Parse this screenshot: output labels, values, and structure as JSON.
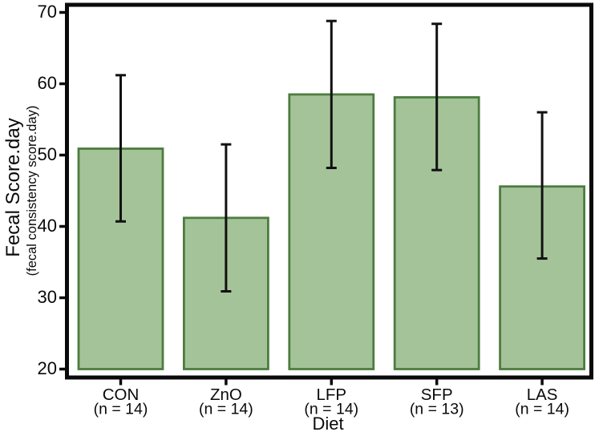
{
  "chart_data": {
    "type": "bar",
    "title": "",
    "xlabel": "Diet",
    "ylabel": "Fecal Score.day",
    "ylabel_sub": "(fecal consistency score.day)",
    "categories": [
      "CON",
      "ZnO",
      "LFP",
      "SFP",
      "LAS"
    ],
    "category_sublabels": [
      "(n = 14)",
      "(n = 14)",
      "(n = 14)",
      "(n = 13)",
      "(n = 14)"
    ],
    "values": [
      50.9,
      41.2,
      58.5,
      58.1,
      45.6
    ],
    "error_upper": [
      61.2,
      51.5,
      68.8,
      68.4,
      56.0
    ],
    "error_lower": [
      40.7,
      30.9,
      48.2,
      47.9,
      35.5
    ],
    "y_ticks": [
      20,
      30,
      40,
      50,
      60,
      70
    ],
    "ylim": [
      20,
      70
    ],
    "grid": false,
    "legend_position": "none",
    "colors": {
      "bar_fill": "#a4c399",
      "bar_stroke": "#4c7d3f",
      "axis": "#0a0a0a",
      "error_bar": "#111111",
      "background": "#ffffff"
    }
  }
}
